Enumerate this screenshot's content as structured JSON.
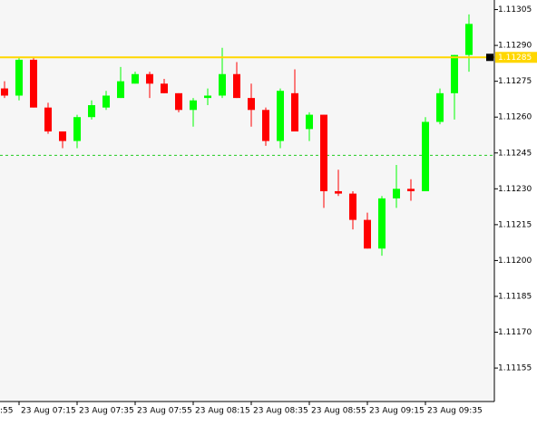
{
  "chart_data": {
    "type": "candlestick",
    "open": [
      1.11272,
      1.11269,
      1.11284,
      1.11264,
      1.11254,
      1.1125,
      1.1126,
      1.11264,
      1.11268,
      1.11274,
      1.11278,
      1.11274,
      1.1127,
      1.11263,
      1.11268,
      1.11269,
      1.11278,
      1.11268,
      1.11263,
      1.1125,
      1.1127,
      1.11255,
      1.11261,
      1.11229,
      1.11228,
      1.11217,
      1.11205,
      1.11226,
      1.1123,
      1.11229,
      1.11258,
      1.1127,
      1.11286
    ],
    "high": [
      1.11275,
      1.11285,
      1.11285,
      1.11266,
      1.11254,
      1.11261,
      1.11267,
      1.11271,
      1.11281,
      1.11279,
      1.11279,
      1.11276,
      1.1127,
      1.11268,
      1.11272,
      1.11289,
      1.11283,
      1.11274,
      1.11264,
      1.11272,
      1.1128,
      1.11262,
      1.11261,
      1.11238,
      1.11229,
      1.1122,
      1.11227,
      1.1124,
      1.11234,
      1.1126,
      1.11272,
      1.11286,
      1.11303
    ],
    "low": [
      1.11268,
      1.11267,
      1.11264,
      1.11253,
      1.11247,
      1.11247,
      1.11259,
      1.11263,
      1.11268,
      1.11274,
      1.11268,
      1.1127,
      1.11262,
      1.11256,
      1.11265,
      1.11268,
      1.11268,
      1.11256,
      1.11248,
      1.11247,
      1.11254,
      1.1125,
      1.11222,
      1.11227,
      1.11213,
      1.11205,
      1.11202,
      1.11222,
      1.11225,
      1.11229,
      1.11257,
      1.11259,
      1.11279
    ],
    "close": [
      1.11269,
      1.11284,
      1.11264,
      1.11254,
      1.1125,
      1.1126,
      1.11265,
      1.11269,
      1.11275,
      1.11278,
      1.11274,
      1.1127,
      1.11263,
      1.11267,
      1.11269,
      1.11278,
      1.11268,
      1.11263,
      1.1125,
      1.11271,
      1.11254,
      1.11261,
      1.11229,
      1.11228,
      1.11217,
      1.11205,
      1.11226,
      1.1123,
      1.11229,
      1.11258,
      1.1127,
      1.11286,
      1.11299
    ],
    "up_color": "#00ff00",
    "down_color": "#ff0000",
    "x_labels": [
      ":55",
      "23 Aug 07:15",
      "23 Aug 07:35",
      "23 Aug 07:55",
      "23 Aug 08:15",
      "23 Aug 08:35",
      "23 Aug 08:55",
      "23 Aug 09:15",
      "23 Aug 09:35"
    ],
    "ylim": [
      1.11141,
      1.11309
    ],
    "yticks": [
      1.11305,
      {
        "value": 1.1129,
        "label": "1.11290"
      },
      1.11275,
      {
        "value": 1.1126,
        "label": "1.11260"
      },
      1.11245,
      {
        "value": 1.1123,
        "label": "1.11230"
      },
      1.11215,
      {
        "value": 1.112,
        "label": "1.11200"
      },
      1.11185,
      {
        "value": 1.1117,
        "label": "1.11170"
      },
      1.11155
    ],
    "price_line": {
      "value": 1.11285,
      "color": "#ffd700"
    },
    "dashed_level": {
      "value": 1.11244,
      "color": "#22cc22"
    }
  }
}
